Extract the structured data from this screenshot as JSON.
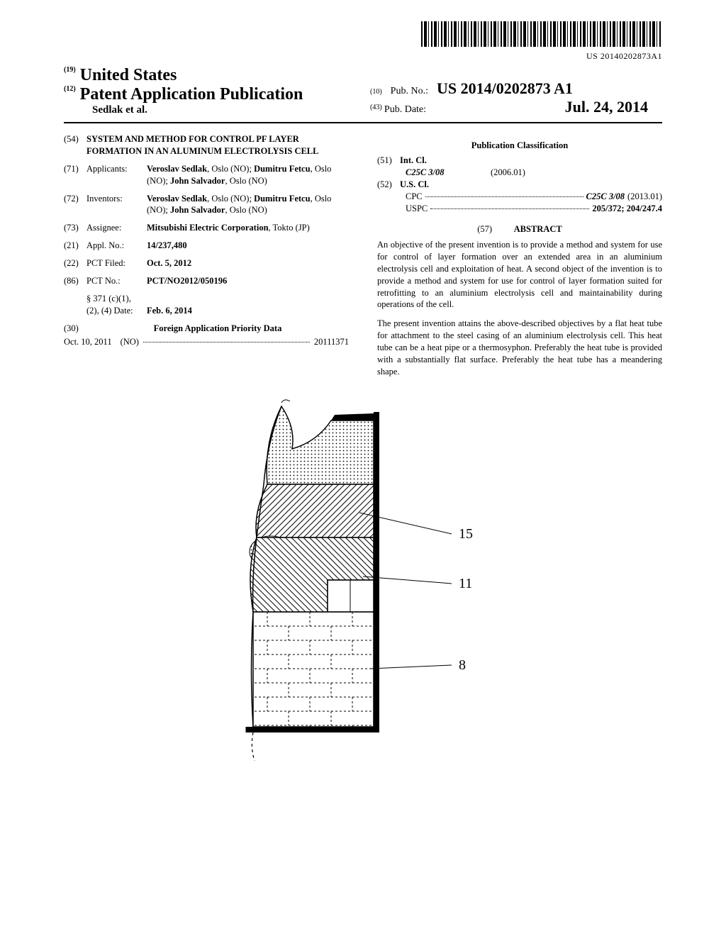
{
  "barcode_text": "US 20140202873A1",
  "header": {
    "country_code": "(19)",
    "country": "United States",
    "doctype_code": "(12)",
    "doctype": "Patent Application Publication",
    "authors": "Sedlak et al.",
    "pub_no_code": "(10)",
    "pub_no_label": "Pub. No.:",
    "pub_no_value": "US 2014/0202873 A1",
    "pub_date_code": "(43)",
    "pub_date_label": "Pub. Date:",
    "pub_date_value": "Jul. 24, 2014"
  },
  "left_col": {
    "title_code": "(54)",
    "title": "SYSTEM AND METHOD FOR CONTROL PF LAYER FORMATION IN AN ALUMINUM ELECTROLYSIS CELL",
    "applicants_code": "(71)",
    "applicants_label": "Applicants:",
    "applicants_html": "<b>Veroslav Sedlak</b>, Oslo (NO); <b>Dumitru Fetcu</b>, Oslo (NO); <b>John Salvador</b>, Oslo (NO)",
    "inventors_code": "(72)",
    "inventors_label": "Inventors:",
    "inventors_html": "<b>Veroslav Sedlak</b>, Oslo (NO); <b>Dumitru Fetcu</b>, Oslo (NO); <b>John Salvador</b>, Oslo (NO)",
    "assignee_code": "(73)",
    "assignee_label": "Assignee:",
    "assignee_html": "<b>Mitsubishi Electric Corporation</b>, Tokto (JP)",
    "appl_code": "(21)",
    "appl_label": "Appl. No.:",
    "appl_value": "14/237,480",
    "pct_filed_code": "(22)",
    "pct_filed_label": "PCT Filed:",
    "pct_filed_value": "Oct. 5, 2012",
    "pct_no_code": "(86)",
    "pct_no_label": "PCT No.:",
    "pct_no_value": "PCT/NO2012/050196",
    "s371_label": "§ 371 (c)(1),",
    "s371_date_label": "(2), (4) Date:",
    "s371_date_value": "Feb. 6, 2014",
    "priority_code": "(30)",
    "priority_heading": "Foreign Application Priority Data",
    "priority_date": "Oct. 10, 2011",
    "priority_country": "(NO)",
    "priority_number": "20111371"
  },
  "right_col": {
    "classif_heading": "Publication Classification",
    "intcl_code": "(51)",
    "intcl_label": "Int. Cl.",
    "intcl_class": "C25C 3/08",
    "intcl_date": "(2006.01)",
    "uscl_code": "(52)",
    "uscl_label": "U.S. Cl.",
    "cpc_label": "CPC",
    "cpc_value": "C25C 3/08",
    "cpc_date": "(2013.01)",
    "uspc_label": "USPC",
    "uspc_value": "205/372; 204/247.4",
    "abstract_code": "(57)",
    "abstract_heading": "ABSTRACT",
    "abstract_p1": "An objective of the present invention is to provide a method and system for use for control of layer formation over an extended area in an aluminium electrolysis cell and exploitation of heat. A second object of the invention is to provide a method and system for use for control of layer formation suited for retrofitting to an aluminium electrolysis cell and maintainability during operations of the cell.",
    "abstract_p2": "The present invention attains the above-described objectives by a flat heat tube for attachment to the steel casing of an aluminium electrolysis cell. This heat tube can be a heat pipe or a thermosyphon. Preferably the heat tube is provided with a substantially flat surface. Preferably the heat tube has a meandering shape."
  },
  "figure": {
    "labels": {
      "a": "15",
      "b": "11",
      "c": "8"
    },
    "colors": {
      "stroke": "#000000",
      "fill_bg": "#ffffff",
      "hatch1": "#787878"
    }
  }
}
